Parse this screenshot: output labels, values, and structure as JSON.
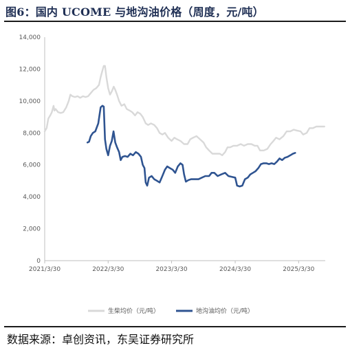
{
  "figure": {
    "title": "图6：国内 UCOME 与地沟油价格（周度，元/吨）",
    "source": "数据来源：卓创资讯，东吴证券研究所"
  },
  "colors": {
    "biodiesel": "#d9d9d9",
    "gutter_oil": "#2f5491",
    "axis": "#bfbfbf",
    "title": "#1f2f54"
  },
  "chart_data": {
    "type": "line",
    "title": "",
    "xlabel": "",
    "ylabel": "",
    "ylim": [
      0,
      14000
    ],
    "yticks": [
      0,
      2000,
      4000,
      6000,
      8000,
      10000,
      12000,
      14000
    ],
    "ytick_labels": [
      "0",
      "2,000",
      "4,000",
      "6,000",
      "8,000",
      "10,000",
      "12,000",
      "14,000"
    ],
    "xlim": [
      "2021-03-30",
      "2025-08-30"
    ],
    "xticks": [
      "2021-03-30",
      "2022-03-30",
      "2023-03-30",
      "2024-03-30",
      "2025-03-30"
    ],
    "xtick_labels": [
      "2021/3/30",
      "2022/3/30",
      "2023/3/30",
      "2024/3/30",
      "2025/3/30"
    ],
    "grid": false,
    "legend_position": "bottom",
    "series": [
      {
        "name": "生柴均价（元/吨）",
        "color_key": "biodiesel",
        "points": [
          [
            "2021-03-30",
            8100
          ],
          [
            "2021-04-10",
            8300
          ],
          [
            "2021-04-20",
            8900
          ],
          [
            "2021-05-01",
            9100
          ],
          [
            "2021-05-10",
            9300
          ],
          [
            "2021-05-20",
            9700
          ],
          [
            "2021-05-25",
            9400
          ],
          [
            "2021-06-01",
            9500
          ],
          [
            "2021-06-15",
            9300
          ],
          [
            "2021-07-01",
            9250
          ],
          [
            "2021-07-15",
            9300
          ],
          [
            "2021-08-01",
            9600
          ],
          [
            "2021-08-15",
            10000
          ],
          [
            "2021-08-25",
            10400
          ],
          [
            "2021-09-05",
            10300
          ],
          [
            "2021-09-20",
            10250
          ],
          [
            "2021-10-05",
            10300
          ],
          [
            "2021-10-20",
            10200
          ],
          [
            "2021-11-05",
            10300
          ],
          [
            "2021-11-20",
            10250
          ],
          [
            "2021-12-05",
            10300
          ],
          [
            "2021-12-20",
            10500
          ],
          [
            "2022-01-05",
            10700
          ],
          [
            "2022-01-20",
            10800
          ],
          [
            "2022-02-05",
            11000
          ],
          [
            "2022-02-15",
            11500
          ],
          [
            "2022-02-25",
            11900
          ],
          [
            "2022-03-05",
            12200
          ],
          [
            "2022-03-12",
            12200
          ],
          [
            "2022-03-20",
            11500
          ],
          [
            "2022-03-30",
            10800
          ],
          [
            "2022-04-10",
            10400
          ],
          [
            "2022-04-20",
            10600
          ],
          [
            "2022-05-01",
            10900
          ],
          [
            "2022-05-10",
            10700
          ],
          [
            "2022-05-20",
            10400
          ],
          [
            "2022-06-01",
            10000
          ],
          [
            "2022-06-15",
            9700
          ],
          [
            "2022-07-01",
            9800
          ],
          [
            "2022-07-15",
            9500
          ],
          [
            "2022-08-01",
            9400
          ],
          [
            "2022-08-15",
            9300
          ],
          [
            "2022-09-01",
            9100
          ],
          [
            "2022-09-15",
            9300
          ],
          [
            "2022-10-01",
            9200
          ],
          [
            "2022-10-15",
            9000
          ],
          [
            "2022-11-01",
            8600
          ],
          [
            "2022-11-15",
            8500
          ],
          [
            "2022-12-01",
            8600
          ],
          [
            "2022-12-20",
            8500
          ],
          [
            "2023-01-05",
            8300
          ],
          [
            "2023-01-20",
            8000
          ],
          [
            "2023-02-05",
            7900
          ],
          [
            "2023-02-20",
            8000
          ],
          [
            "2023-03-10",
            7700
          ],
          [
            "2023-03-30",
            7500
          ],
          [
            "2023-04-15",
            7700
          ],
          [
            "2023-05-01",
            7600
          ],
          [
            "2023-05-20",
            7500
          ],
          [
            "2023-06-10",
            7300
          ],
          [
            "2023-06-30",
            7300
          ],
          [
            "2023-07-15",
            7600
          ],
          [
            "2023-08-01",
            7700
          ],
          [
            "2023-08-20",
            7800
          ],
          [
            "2023-09-10",
            7600
          ],
          [
            "2023-09-30",
            7400
          ],
          [
            "2023-10-15",
            7100
          ],
          [
            "2023-11-01",
            6900
          ],
          [
            "2023-11-20",
            6700
          ],
          [
            "2023-12-10",
            6700
          ],
          [
            "2024-01-01",
            6700
          ],
          [
            "2024-01-15",
            6600
          ],
          [
            "2024-02-01",
            6800
          ],
          [
            "2024-02-15",
            7100
          ],
          [
            "2024-03-01",
            7100
          ],
          [
            "2024-03-20",
            7200
          ],
          [
            "2024-04-10",
            7200
          ],
          [
            "2024-05-01",
            7300
          ],
          [
            "2024-05-20",
            7200
          ],
          [
            "2024-06-10",
            7300
          ],
          [
            "2024-07-01",
            7300
          ],
          [
            "2024-07-20",
            7200
          ],
          [
            "2024-08-05",
            7200
          ],
          [
            "2024-08-20",
            6900
          ],
          [
            "2024-09-10",
            6900
          ],
          [
            "2024-10-01",
            7000
          ],
          [
            "2024-10-20",
            7300
          ],
          [
            "2024-11-05",
            7500
          ],
          [
            "2024-11-20",
            7700
          ],
          [
            "2024-12-10",
            7600
          ],
          [
            "2025-01-01",
            7800
          ],
          [
            "2025-01-20",
            8100
          ],
          [
            "2025-02-10",
            8100
          ],
          [
            "2025-03-01",
            8200
          ],
          [
            "2025-03-20",
            8150
          ],
          [
            "2025-04-10",
            8100
          ],
          [
            "2025-04-25",
            7900
          ],
          [
            "2025-05-15",
            8000
          ],
          [
            "2025-06-01",
            8300
          ],
          [
            "2025-06-20",
            8300
          ],
          [
            "2025-07-10",
            8400
          ],
          [
            "2025-08-01",
            8400
          ],
          [
            "2025-08-25",
            8400
          ]
        ]
      },
      {
        "name": "地沟油均价（元/吨）",
        "color_key": "gutter_oil",
        "points": [
          [
            "2021-12-01",
            7400
          ],
          [
            "2021-12-10",
            7450
          ],
          [
            "2021-12-20",
            7800
          ],
          [
            "2022-01-01",
            8000
          ],
          [
            "2022-01-15",
            8100
          ],
          [
            "2022-02-01",
            8600
          ],
          [
            "2022-02-15",
            9600
          ],
          [
            "2022-02-25",
            9700
          ],
          [
            "2022-03-05",
            9650
          ],
          [
            "2022-03-12",
            7600
          ],
          [
            "2022-03-20",
            7000
          ],
          [
            "2022-03-30",
            6600
          ],
          [
            "2022-04-10",
            7200
          ],
          [
            "2022-04-20",
            7500
          ],
          [
            "2022-04-30",
            8100
          ],
          [
            "2022-05-10",
            7400
          ],
          [
            "2022-05-20",
            7100
          ],
          [
            "2022-06-01",
            6800
          ],
          [
            "2022-06-10",
            6300
          ],
          [
            "2022-06-20",
            6500
          ],
          [
            "2022-07-05",
            6550
          ],
          [
            "2022-07-20",
            6500
          ],
          [
            "2022-08-05",
            6700
          ],
          [
            "2022-08-20",
            6600
          ],
          [
            "2022-09-05",
            6800
          ],
          [
            "2022-09-20",
            6700
          ],
          [
            "2022-10-05",
            6500
          ],
          [
            "2022-10-15",
            6000
          ],
          [
            "2022-10-25",
            5800
          ],
          [
            "2022-11-01",
            4900
          ],
          [
            "2022-11-10",
            4700
          ],
          [
            "2022-11-20",
            5200
          ],
          [
            "2022-12-05",
            5300
          ],
          [
            "2022-12-20",
            5100
          ],
          [
            "2023-01-05",
            5000
          ],
          [
            "2023-01-20",
            4900
          ],
          [
            "2023-02-05",
            5300
          ],
          [
            "2023-02-20",
            5700
          ],
          [
            "2023-03-05",
            5900
          ],
          [
            "2023-03-20",
            5800
          ],
          [
            "2023-04-05",
            5700
          ],
          [
            "2023-04-20",
            5500
          ],
          [
            "2023-05-05",
            5900
          ],
          [
            "2023-05-20",
            6100
          ],
          [
            "2023-06-01",
            6000
          ],
          [
            "2023-06-10",
            5400
          ],
          [
            "2023-06-20",
            4950
          ],
          [
            "2023-07-05",
            5050
          ],
          [
            "2023-07-20",
            5100
          ],
          [
            "2023-08-10",
            5100
          ],
          [
            "2023-09-01",
            5100
          ],
          [
            "2023-09-20",
            5200
          ],
          [
            "2023-10-10",
            5300
          ],
          [
            "2023-11-01",
            5300
          ],
          [
            "2023-11-15",
            5500
          ],
          [
            "2023-12-01",
            5500
          ],
          [
            "2023-12-20",
            5300
          ],
          [
            "2024-01-10",
            5400
          ],
          [
            "2024-02-01",
            5500
          ],
          [
            "2024-02-20",
            5300
          ],
          [
            "2024-03-10",
            5250
          ],
          [
            "2024-03-30",
            5200
          ],
          [
            "2024-04-10",
            4700
          ],
          [
            "2024-04-25",
            4650
          ],
          [
            "2024-05-10",
            4700
          ],
          [
            "2024-05-25",
            5100
          ],
          [
            "2024-06-10",
            5200
          ],
          [
            "2024-06-25",
            5400
          ],
          [
            "2024-07-10",
            5500
          ],
          [
            "2024-07-25",
            5600
          ],
          [
            "2024-08-10",
            5800
          ],
          [
            "2024-08-25",
            6050
          ],
          [
            "2024-09-10",
            6100
          ],
          [
            "2024-09-25",
            6100
          ],
          [
            "2024-10-10",
            6050
          ],
          [
            "2024-10-25",
            6100
          ],
          [
            "2024-11-10",
            6050
          ],
          [
            "2024-11-25",
            6200
          ],
          [
            "2024-12-10",
            6400
          ],
          [
            "2024-12-25",
            6300
          ],
          [
            "2025-01-10",
            6450
          ],
          [
            "2025-01-25",
            6500
          ],
          [
            "2025-02-10",
            6600
          ],
          [
            "2025-02-25",
            6700
          ],
          [
            "2025-03-10",
            6750
          ]
        ]
      }
    ]
  }
}
